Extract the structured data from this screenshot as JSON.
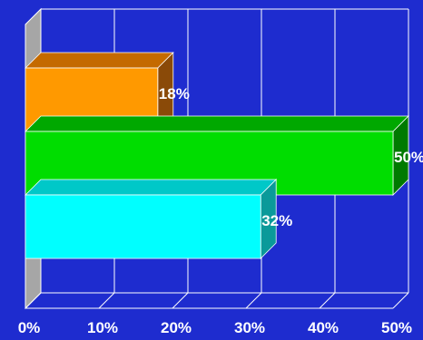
{
  "chart_data": {
    "type": "bar",
    "orientation": "horizontal",
    "style": "3d",
    "grid": true,
    "legend": "none",
    "title": "",
    "xlabel": "",
    "ylabel": "",
    "xlim": [
      0,
      50
    ],
    "x_ticks": [
      "0%",
      "10%",
      "20%",
      "30%",
      "40%",
      "50%"
    ],
    "categories": [
      "",
      "",
      ""
    ],
    "values": [
      18,
      50,
      32
    ],
    "labels": [
      "18%",
      "50%",
      "32%"
    ],
    "colors": [
      "#ff9900",
      "#00dd00",
      "#00ffff"
    ],
    "side_colors": [
      "#8a4a08",
      "#007a00",
      "#0a9a9a"
    ],
    "top_colors": [
      "#c46a00",
      "#00a800",
      "#00c8c8"
    ],
    "background": "#1e2ccf"
  }
}
